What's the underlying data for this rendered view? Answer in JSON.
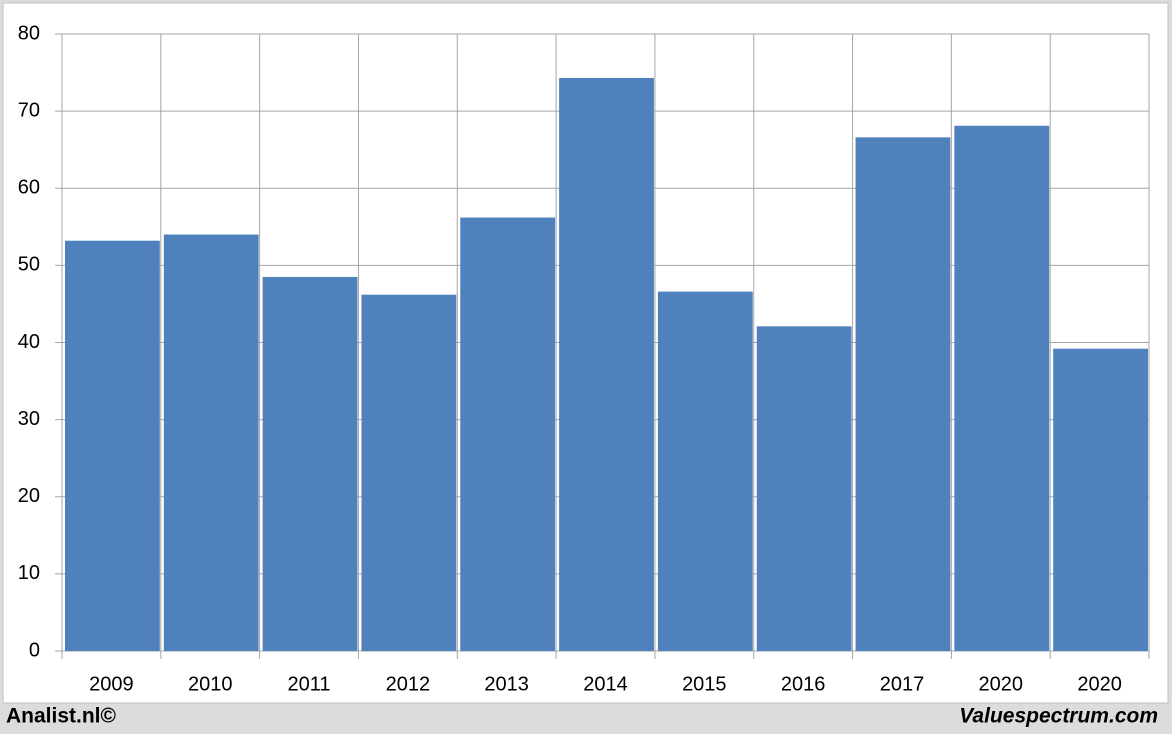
{
  "chart_data": {
    "type": "bar",
    "categories": [
      "2009",
      "2010",
      "2011",
      "2012",
      "2013",
      "2014",
      "2015",
      "2016",
      "2017",
      "2020",
      "2020"
    ],
    "values": [
      53.2,
      54,
      48.5,
      46.2,
      56.2,
      74.3,
      46.6,
      42.1,
      66.6,
      68.1,
      39.2
    ],
    "color": "#4f81bd",
    "ylim": [
      0,
      80
    ],
    "yticks": [
      0,
      10,
      20,
      30,
      40,
      50,
      60,
      70,
      80
    ],
    "grid": true,
    "source_left": "Analist.nl©",
    "source_right": "Valuespectrum.com"
  }
}
